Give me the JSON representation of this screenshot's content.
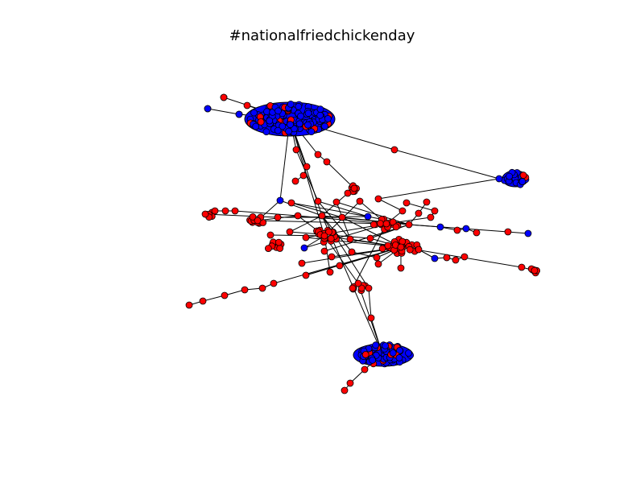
{
  "title": "#nationalfriedchickenday",
  "colors": {
    "node_red": "#ff0000",
    "node_blue": "#0000ff",
    "node_outline": "#000000",
    "edge": "#000000",
    "background": "#ffffff"
  },
  "legend": "none",
  "axes": "hidden"
}
